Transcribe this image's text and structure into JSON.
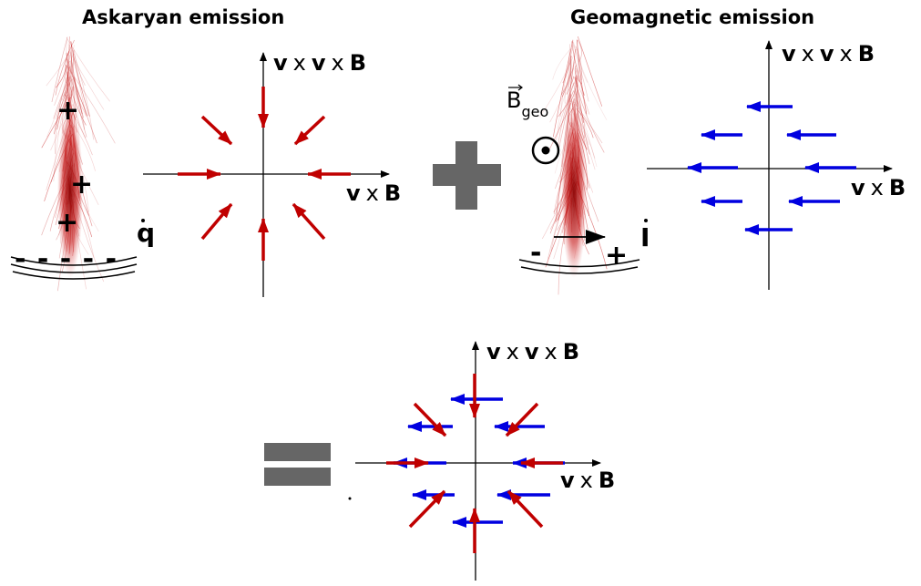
{
  "titles": {
    "askaryan": "Askaryan emission",
    "geomagnetic": "Geomagnetic emission"
  },
  "axis_labels": {
    "vxvxB": {
      "v1": "v",
      "x1": "x",
      "v2": "v",
      "x2": "x",
      "B": "B"
    },
    "vxB": {
      "v": "v",
      "x": "x",
      "B": "B"
    }
  },
  "askaryan": {
    "charges_plus": [
      "+",
      "+",
      "+"
    ],
    "charges_minus": "- - - - -",
    "symbol": "q"
  },
  "geomagnetic": {
    "field_label": "B",
    "field_subscript": "geo",
    "charge_minus": "-",
    "charge_plus": "+",
    "symbol": "I"
  },
  "operators": {
    "plus": "plus-sign",
    "equals": "equals-sign"
  },
  "colors": {
    "askaryan_arrow": "#c00000",
    "geomagnetic_arrow": "#0000e0",
    "operator": "#666666",
    "shower": "#c00000",
    "axes": "#000000"
  }
}
